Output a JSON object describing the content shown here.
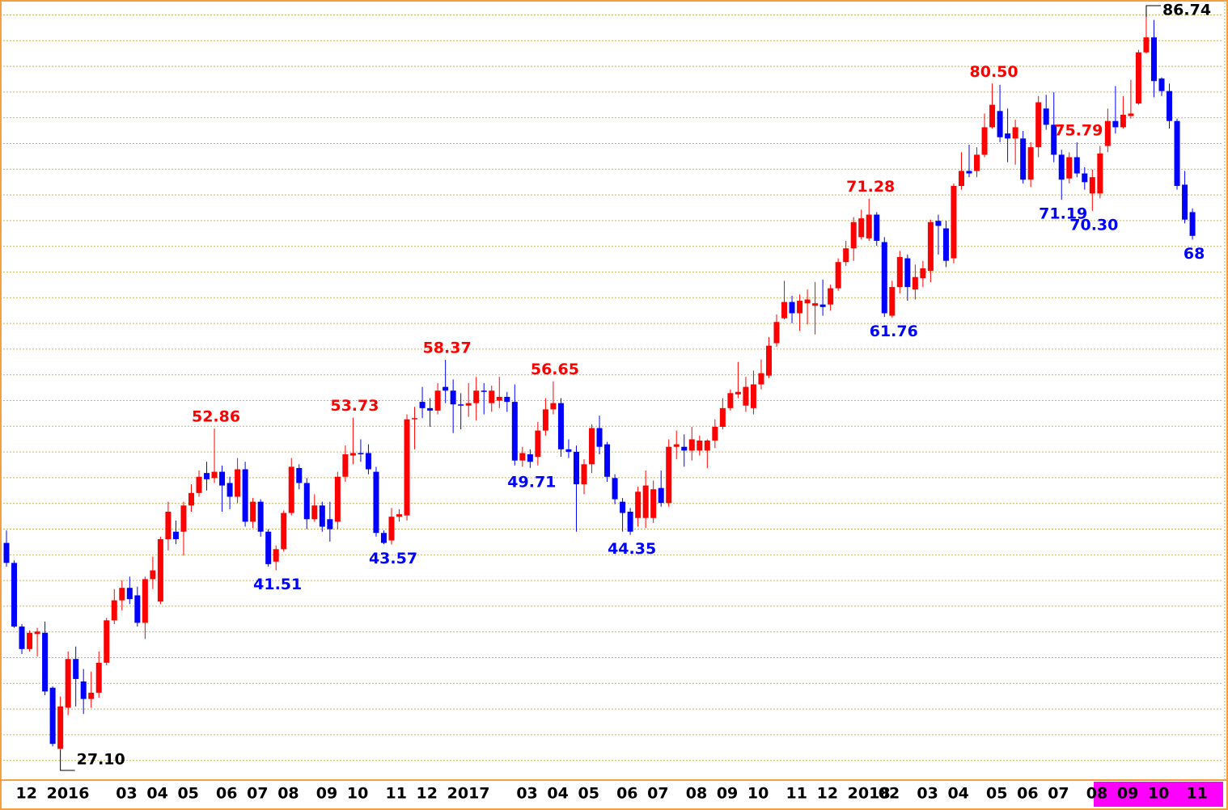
{
  "chart_data": {
    "type": "candlestick",
    "categories": [
      null,
      "12",
      null,
      null,
      null,
      "2016",
      null,
      null,
      null,
      null,
      null,
      null,
      null,
      null,
      "03",
      null,
      null,
      null,
      "04",
      null,
      null,
      null,
      "05",
      null,
      null,
      null,
      null,
      "06",
      null,
      null,
      null,
      "07",
      null,
      null,
      null,
      "08",
      null,
      null,
      null,
      null,
      "09",
      null,
      null,
      null,
      "10",
      null,
      null,
      null,
      null,
      "11",
      null,
      null,
      null,
      "12",
      null,
      null,
      null,
      "2017",
      null,
      null,
      null,
      null,
      null,
      null,
      null,
      null,
      "03",
      null,
      null,
      null,
      "04",
      null,
      null,
      null,
      "05",
      null,
      null,
      null,
      null,
      "06",
      null,
      null,
      null,
      "07",
      null,
      null,
      null,
      null,
      "08",
      null,
      null,
      null,
      "09",
      null,
      null,
      null,
      "10",
      null,
      null,
      null,
      null,
      "11",
      null,
      null,
      null,
      "12",
      null,
      null,
      null,
      "2018",
      null,
      null,
      null,
      "02",
      null,
      null,
      null,
      null,
      "03",
      null,
      null,
      null,
      "04",
      null,
      null,
      null,
      null,
      "05",
      null,
      null,
      null,
      "06",
      null,
      null,
      null,
      "07",
      null,
      null,
      null,
      null,
      "08",
      null,
      null,
      null,
      "09",
      null,
      null,
      null,
      "10",
      null,
      null,
      null,
      null,
      "11",
      null
    ],
    "open": [
      43.7,
      42.1,
      37.0,
      35.2,
      36.4,
      36.5,
      32.1,
      27.2,
      30.5,
      34.4,
      32.6,
      31.2,
      31.7,
      34.1,
      37.5,
      39.1,
      40.1,
      39.5,
      37.3,
      40.8,
      39.0,
      44.0,
      44.6,
      44.6,
      46.7,
      47.7,
      49.3,
      48.9,
      49.4,
      48.5,
      47.4,
      49.6,
      45.4,
      47.0,
      44.6,
      42.2,
      43.2,
      46.1,
      49.7,
      48.5,
      45.6,
      46.7,
      45.6,
      45.4,
      49.0,
      50.7,
      50.9,
      50.9,
      49.4,
      44.5,
      43.9,
      45.8,
      45.9,
      53.6,
      55.0,
      54.5,
      54.3,
      56.2,
      55.9,
      54.8,
      54.7,
      54.9,
      55.9,
      54.9,
      55.1,
      55.4,
      55.0,
      50.3,
      50.8,
      50.6,
      52.7,
      54.4,
      54.9,
      51.2,
      51.0,
      48.4,
      50.0,
      52.9,
      51.6,
      48.9,
      47.0,
      46.2,
      45.7,
      45.7,
      45.7,
      48.1,
      46.9,
      51.4,
      51.4,
      51.1,
      51.1,
      51.1,
      51.9,
      53.0,
      54.5,
      55.6,
      54.7,
      54.5,
      56.4,
      57.1,
      59.7,
      61.7,
      63.0,
      62.1,
      62.9,
      62.7,
      62.8,
      62.8,
      64.1,
      66.2,
      67.3,
      68.2,
      68.1,
      70.0,
      67.8,
      61.9,
      64.2,
      66.5,
      64.0,
      64.9,
      65.5,
      69.5,
      68.9,
      66.5,
      72.3,
      73.5,
      73.5,
      74.8,
      77.0,
      78.3,
      76.5,
      76.1,
      76.1,
      72.8,
      75.4,
      78.5,
      77.2,
      74.8,
      72.9,
      74.6,
      73.3,
      71.7,
      71.7,
      75.5,
      77.5,
      77.0,
      77.9,
      78.9,
      83.0,
      84.2,
      80.9,
      79.9,
      77.5,
      72.4,
      70.2
    ],
    "high": [
      44.7,
      42.3,
      37.2,
      36.7,
      36.9,
      37.4,
      32.2,
      31.4,
      35.0,
      35.4,
      33.6,
      33.4,
      35.0,
      37.7,
      40.0,
      40.7,
      41.0,
      40.2,
      41.0,
      42.6,
      44.2,
      47.0,
      45.5,
      47.0,
      48.4,
      49.5,
      50.2,
      52.86,
      49.9,
      49.0,
      50.5,
      50.2,
      47.3,
      47.2,
      44.8,
      43.5,
      46.3,
      50.5,
      50.0,
      48.9,
      47.6,
      47.0,
      47.0,
      49.4,
      51.5,
      53.73,
      52.0,
      51.6,
      49.8,
      44.7,
      46.5,
      46.4,
      54.0,
      54.6,
      56.2,
      55.3,
      56.5,
      58.37,
      56.8,
      55.7,
      56.5,
      57.0,
      56.5,
      56.3,
      57.0,
      55.8,
      56.4,
      51.4,
      51.2,
      53.4,
      55.3,
      56.65,
      55.3,
      52.0,
      51.5,
      50.4,
      53.2,
      53.9,
      51.8,
      49.2,
      47.3,
      46.5,
      48.2,
      49.5,
      48.7,
      49.5,
      52.0,
      52.7,
      52.4,
      53.0,
      52.3,
      52.0,
      53.6,
      55.3,
      56.0,
      58.2,
      57.0,
      57.5,
      58.4,
      60.2,
      62.0,
      64.7,
      63.5,
      63.6,
      64.0,
      64.6,
      64.8,
      64.4,
      66.5,
      67.9,
      69.8,
      70.4,
      71.28,
      70.2,
      68.2,
      64.7,
      67.1,
      66.8,
      66.0,
      66.3,
      69.6,
      70.0,
      69.5,
      72.5,
      75.0,
      75.6,
      75.4,
      78.1,
      80.5,
      80.4,
      78.5,
      77.6,
      76.7,
      75.8,
      79.5,
      79.6,
      79.8,
      75.2,
      75.0,
      75.79,
      73.8,
      73.6,
      75.5,
      78.5,
      80.3,
      79.5,
      80.8,
      83.2,
      86.74,
      85.6,
      81.0,
      80.5,
      77.7,
      73.5,
      70.5
    ],
    "low": [
      41.8,
      36.9,
      34.8,
      35.0,
      34.6,
      31.5,
      27.4,
      27.1,
      29.9,
      30.6,
      30.0,
      30.5,
      31.3,
      33.9,
      37.2,
      38.3,
      38.8,
      37.0,
      36.0,
      40.0,
      38.8,
      43.1,
      43.6,
      42.7,
      46.2,
      47.4,
      47.9,
      48.5,
      46.2,
      46.4,
      46.9,
      45.0,
      44.9,
      44.2,
      41.8,
      41.51,
      43.0,
      45.9,
      48.0,
      44.8,
      45.4,
      44.6,
      43.8,
      44.8,
      48.6,
      50.0,
      50.2,
      49.2,
      44.2,
      43.6,
      43.57,
      45.4,
      45.5,
      51.2,
      53.7,
      53.0,
      54.0,
      54.9,
      52.5,
      52.8,
      53.8,
      53.5,
      54.0,
      54.2,
      54.5,
      54.2,
      49.9,
      49.8,
      49.71,
      49.9,
      52.3,
      54.0,
      50.6,
      50.5,
      44.6,
      47.6,
      49.3,
      50.8,
      48.6,
      46.8,
      44.6,
      44.35,
      45.0,
      44.9,
      45.3,
      46.6,
      46.6,
      50.4,
      49.8,
      50.3,
      50.7,
      49.7,
      51.3,
      52.8,
      54.3,
      55.3,
      54.2,
      54.0,
      56.0,
      56.9,
      59.4,
      61.6,
      61.3,
      60.7,
      61.2,
      60.4,
      61.9,
      62.3,
      63.9,
      65.9,
      66.3,
      68.0,
      67.9,
      67.5,
      61.8,
      61.76,
      63.7,
      63.1,
      63.2,
      64.2,
      64.6,
      66.8,
      65.8,
      66.1,
      72.0,
      73.0,
      73.0,
      74.6,
      76.9,
      75.8,
      74.2,
      74.0,
      72.5,
      72.2,
      74.6,
      76.8,
      74.2,
      71.19,
      72.5,
      73.0,
      72.0,
      70.3,
      71.3,
      75.0,
      76.5,
      76.9,
      77.7,
      78.8,
      82.9,
      79.4,
      79.5,
      76.9,
      72.0,
      69.3,
      68
    ],
    "close": [
      42.1,
      37.0,
      35.2,
      36.5,
      36.6,
      31.8,
      27.6,
      30.6,
      34.4,
      32.8,
      31.2,
      31.7,
      34.1,
      37.5,
      39.1,
      40.1,
      39.2,
      37.3,
      40.8,
      41.5,
      44.0,
      46.2,
      44.0,
      46.7,
      47.7,
      49.0,
      48.8,
      49.4,
      48.3,
      47.4,
      49.6,
      45.4,
      47.0,
      44.6,
      42.0,
      43.2,
      46.1,
      49.8,
      48.5,
      45.6,
      46.7,
      45.0,
      44.8,
      49.0,
      50.8,
      50.9,
      50.8,
      49.6,
      44.5,
      43.7,
      45.8,
      46.0,
      53.6,
      53.7,
      54.5,
      54.3,
      55.9,
      55.9,
      54.8,
      54.7,
      54.9,
      55.9,
      55.8,
      55.9,
      55.4,
      55.0,
      50.3,
      50.9,
      50.2,
      52.7,
      54.4,
      54.9,
      51.2,
      51.0,
      48.4,
      50.0,
      52.9,
      51.4,
      49.0,
      47.2,
      46.1,
      44.6,
      47.8,
      48.3,
      48.0,
      46.9,
      51.4,
      51.6,
      51.1,
      52.0,
      51.9,
      51.9,
      53.0,
      54.5,
      55.7,
      55.8,
      56.2,
      56.4,
      57.3,
      59.5,
      61.4,
      63.0,
      62.1,
      63.1,
      63.2,
      62.9,
      62.6,
      64.1,
      66.2,
      67.3,
      69.4,
      69.7,
      70.0,
      67.9,
      62.1,
      64.2,
      66.6,
      64.2,
      65.0,
      65.7,
      69.4,
      69.1,
      66.3,
      72.3,
      73.5,
      73.3,
      74.8,
      77.0,
      78.8,
      76.2,
      76.1,
      77.0,
      72.8,
      75.4,
      79.0,
      77.2,
      74.8,
      72.8,
      74.6,
      73.3,
      72.6,
      73.0,
      74.9,
      77.5,
      77.0,
      78.0,
      78.1,
      83.0,
      84.2,
      80.7,
      79.9,
      77.5,
      72.3,
      69.6,
      68.3
    ],
    "high_labels": [
      null,
      null,
      null,
      null,
      null,
      null,
      null,
      null,
      null,
      null,
      null,
      null,
      null,
      null,
      null,
      null,
      null,
      null,
      null,
      null,
      null,
      null,
      null,
      null,
      null,
      null,
      null,
      "52.86",
      null,
      null,
      null,
      null,
      null,
      null,
      null,
      null,
      null,
      null,
      null,
      null,
      null,
      null,
      null,
      null,
      null,
      "53.73",
      null,
      null,
      null,
      null,
      null,
      null,
      null,
      null,
      null,
      null,
      null,
      "58.37",
      null,
      null,
      null,
      null,
      null,
      null,
      null,
      null,
      null,
      null,
      null,
      null,
      null,
      "56.65",
      null,
      null,
      null,
      null,
      null,
      null,
      null,
      null,
      null,
      null,
      null,
      null,
      null,
      null,
      null,
      null,
      null,
      null,
      null,
      null,
      null,
      null,
      null,
      null,
      null,
      null,
      null,
      null,
      null,
      null,
      null,
      null,
      null,
      null,
      null,
      null,
      null,
      null,
      null,
      null,
      "71.28",
      null,
      null,
      null,
      null,
      null,
      null,
      null,
      null,
      null,
      null,
      null,
      null,
      null,
      null,
      null,
      "80.50",
      null,
      null,
      null,
      null,
      null,
      null,
      null,
      null,
      null,
      null,
      "75.79",
      null,
      null,
      null,
      null,
      null,
      null,
      null,
      null,
      "86.74",
      null,
      null,
      null,
      null,
      null,
      null
    ],
    "low_labels": [
      null,
      null,
      null,
      null,
      null,
      null,
      null,
      "27.10",
      null,
      null,
      null,
      null,
      null,
      null,
      null,
      null,
      null,
      null,
      null,
      null,
      null,
      null,
      null,
      null,
      null,
      null,
      null,
      null,
      null,
      null,
      null,
      null,
      null,
      null,
      null,
      "41.51",
      null,
      null,
      null,
      null,
      null,
      null,
      null,
      null,
      null,
      null,
      null,
      null,
      null,
      null,
      "43.57",
      null,
      null,
      null,
      null,
      null,
      null,
      null,
      null,
      null,
      null,
      null,
      null,
      null,
      null,
      null,
      null,
      null,
      "49.71",
      null,
      null,
      null,
      null,
      null,
      null,
      null,
      null,
      null,
      null,
      null,
      null,
      "44.35",
      null,
      null,
      null,
      null,
      null,
      null,
      null,
      null,
      null,
      null,
      null,
      null,
      null,
      null,
      null,
      null,
      null,
      null,
      null,
      null,
      null,
      null,
      null,
      null,
      null,
      null,
      null,
      null,
      null,
      null,
      null,
      null,
      null,
      "61.76",
      null,
      null,
      null,
      null,
      null,
      null,
      null,
      null,
      null,
      null,
      null,
      null,
      null,
      null,
      null,
      null,
      null,
      null,
      null,
      null,
      null,
      "71.19",
      null,
      null,
      null,
      "70.30",
      null,
      null,
      null,
      null,
      null,
      null,
      null,
      null,
      null,
      null,
      null,
      null,
      "68"
    ],
    "up_color": "#ff0000",
    "down_color": "#0000ff",
    "ylim": [
      24.7,
      87.0
    ],
    "grid": true
  }
}
